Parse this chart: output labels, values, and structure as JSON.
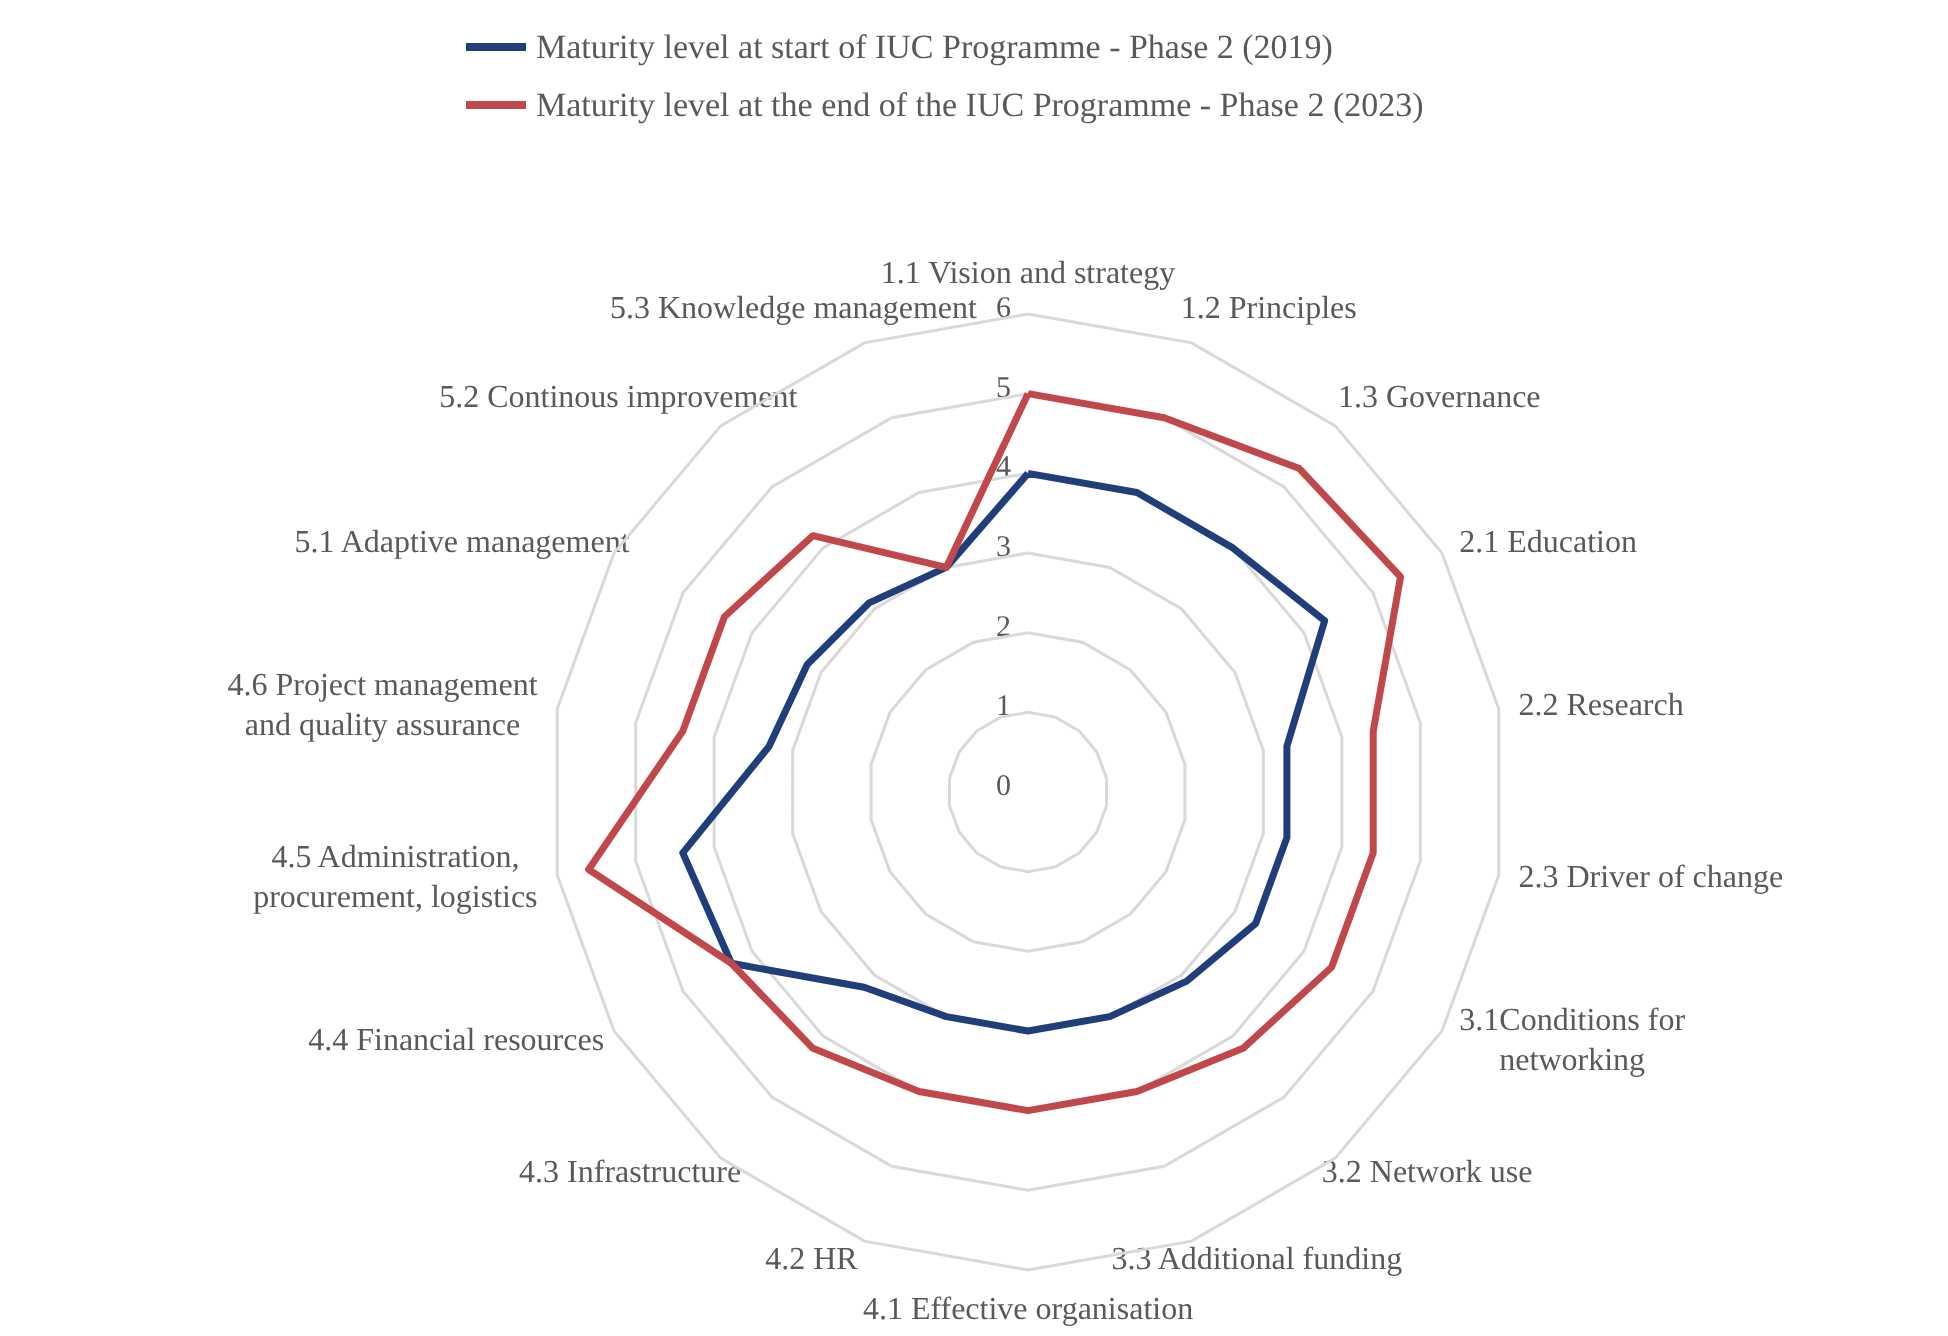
{
  "chart_data": {
    "type": "radar",
    "categories": [
      "1.1 Vision and strategy",
      "1.2 Principles",
      "1.3 Governance",
      "2.1 Education",
      "2.2 Research",
      "2.3 Driver of change",
      "3.1Conditions for networking",
      "3.2 Network use",
      "3.3 Additional funding",
      "4.1 Effective organisation",
      "4.2 HR",
      "4.3 Infrastructure",
      "4.4 Financial resources",
      "4.5 Administration, procurement, logistics",
      "4.6 Project management and quality assurance",
      "5.1 Adaptive management",
      "5.2 Continous improvement",
      "5.3 Knowledge management"
    ],
    "series": [
      {
        "name": "Maturity level at start of IUC Programme - Phase 2 (2019)",
        "color": "#203f7a",
        "values": [
          4.0,
          4.0,
          4.0,
          4.3,
          3.3,
          3.3,
          3.3,
          3.1,
          3.0,
          3.0,
          3.0,
          3.2,
          4.3,
          4.4,
          3.3,
          3.2,
          3.1,
          3.0
        ]
      },
      {
        "name": "Maturity level at the end of the IUC Programme - Phase 2 (2023)",
        "color": "#c0474a",
        "values": [
          5.0,
          5.0,
          5.3,
          5.4,
          4.4,
          4.4,
          4.4,
          4.2,
          4.0,
          4.0,
          4.0,
          4.2,
          4.3,
          5.6,
          4.4,
          4.4,
          4.2,
          3.0
        ]
      }
    ],
    "ylim": [
      0,
      6
    ],
    "yticks": [
      0,
      1,
      2,
      3,
      4,
      5,
      6
    ],
    "legend": "top",
    "marker": "none",
    "grid": true
  }
}
